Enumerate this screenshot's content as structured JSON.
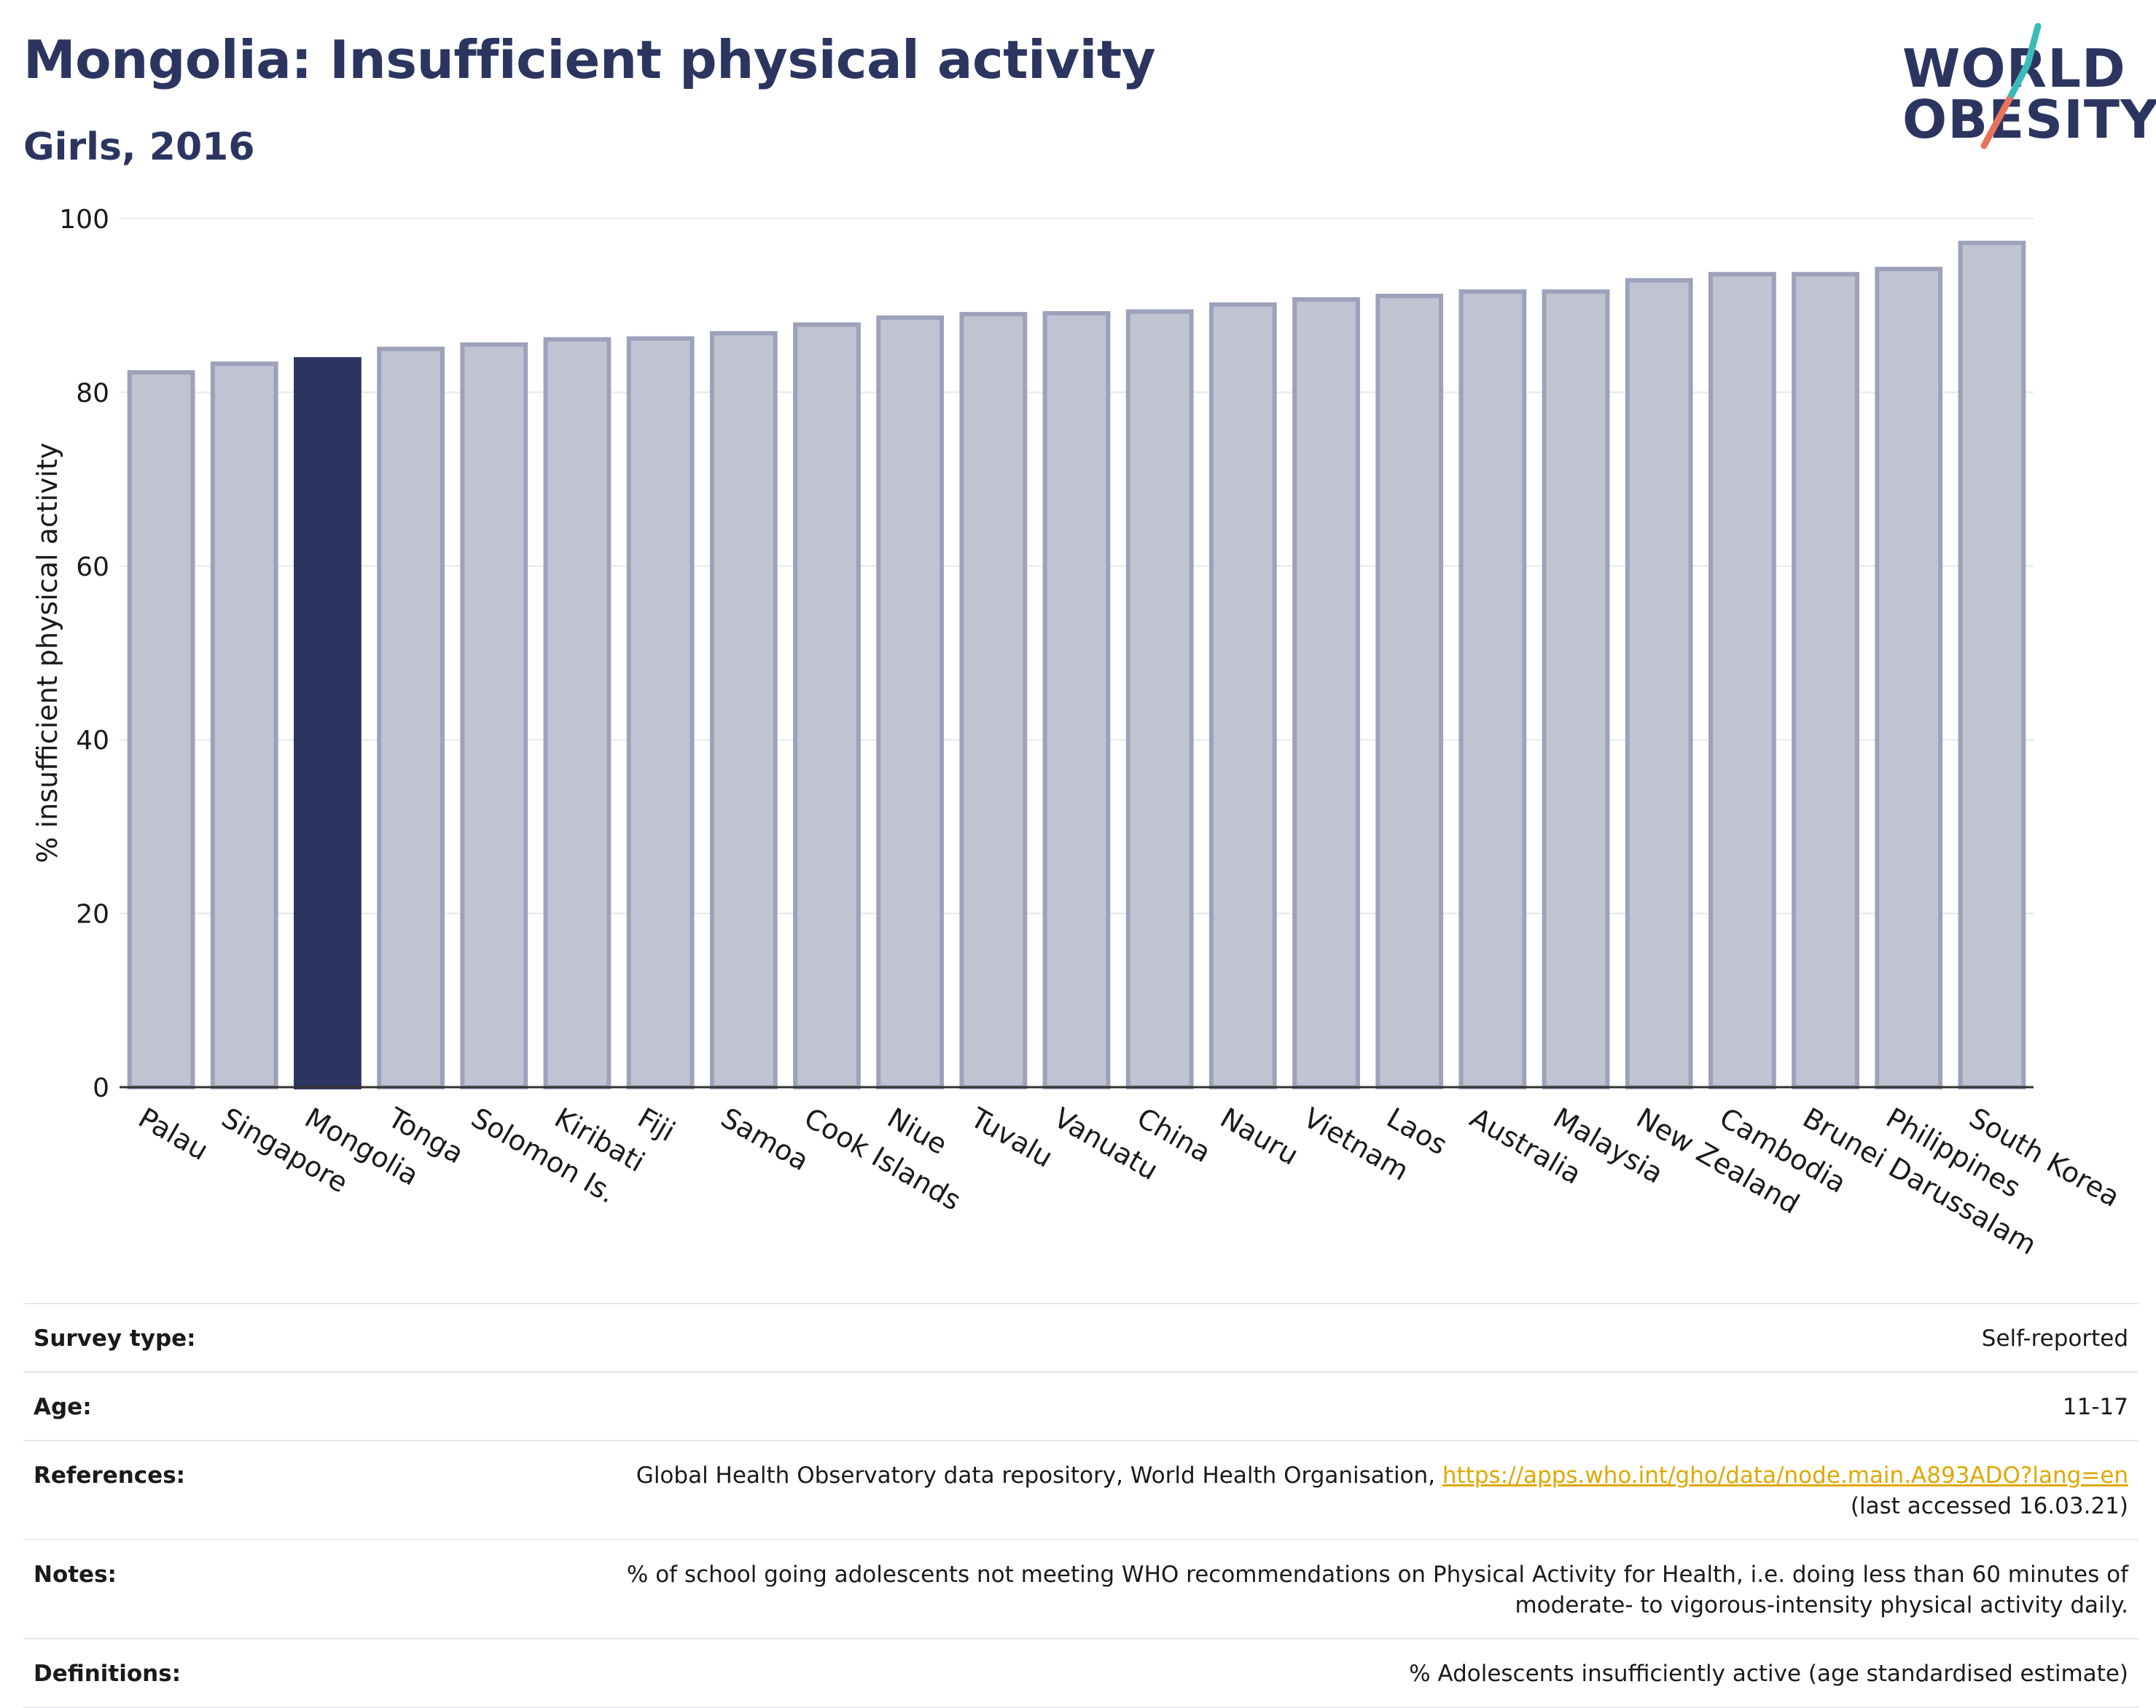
{
  "header": {
    "title": "Mongolia: Insufficient physical activity",
    "subtitle": "Girls, 2016"
  },
  "logo": {
    "line1": "WORLD",
    "line2": "OBESITY",
    "text_color": "#2b3560",
    "accent_teal": "#3bbcb8",
    "accent_coral": "#e8735d"
  },
  "chart_data": {
    "type": "bar",
    "ylabel": "% insufficient physical activity",
    "xlabel": "",
    "ylim": [
      0,
      100
    ],
    "yticks": [
      0,
      20,
      40,
      60,
      80,
      100
    ],
    "grid": true,
    "highlight": "Mongolia",
    "highlight_color": "#2b3560",
    "bar_color": "#c0c3d1",
    "bar_edge_color": "#9da2ba",
    "categories": [
      "Palau",
      "Singapore",
      "Mongolia",
      "Tonga",
      "Solomon Is.",
      "Kiribati",
      "Fiji",
      "Samoa",
      "Cook Islands",
      "Niue",
      "Tuvalu",
      "Vanuatu",
      "China",
      "Nauru",
      "Vietnam",
      "Laos",
      "Australia",
      "Malaysia",
      "New Zealand",
      "Cambodia",
      "Brunei Darussalam",
      "Philippines",
      "South Korea"
    ],
    "values": [
      82.3,
      83.3,
      83.8,
      85.0,
      85.5,
      86.1,
      86.2,
      86.8,
      87.8,
      88.6,
      89.0,
      89.1,
      89.3,
      90.1,
      90.7,
      91.1,
      91.6,
      91.6,
      92.9,
      93.6,
      93.6,
      94.2,
      97.2
    ]
  },
  "info": {
    "survey_type": {
      "label": "Survey type:",
      "value": "Self-reported"
    },
    "age": {
      "label": "Age:",
      "value": "11-17"
    },
    "references": {
      "label": "References:",
      "text": "Global Health Observatory data repository, World Health Organisation, ",
      "link": "https://apps.who.int/gho/data/node.main.A893ADO?lang=en",
      "accessed": "(last accessed 16.03.21)"
    },
    "notes": {
      "label": "Notes:",
      "line1": "% of school going adolescents not meeting WHO recommendations on Physical Activity for Health, i.e. doing less than 60 minutes of",
      "line2": "moderate- to vigorous-intensity physical activity daily."
    },
    "definitions": {
      "label": "Definitions:",
      "value": "% Adolescents insufficiently active (age standardised estimate)"
    }
  }
}
